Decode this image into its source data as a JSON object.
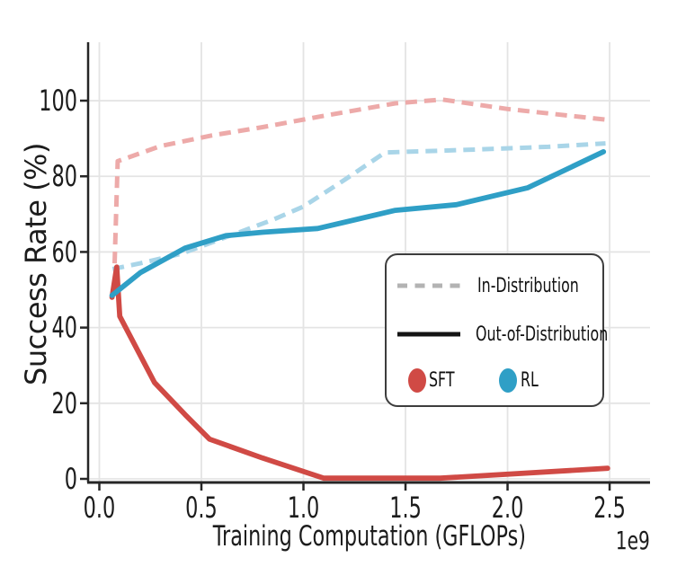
{
  "chart_data": {
    "type": "line",
    "xlabel": "Training Computation (GFLOPs)",
    "ylabel": "Success Rate (%)",
    "x_offset_label": "1e9",
    "xlim": [
      -0.055,
      2.698
    ],
    "ylim": [
      -0.95,
      115.45
    ],
    "grid": true,
    "x_ticks": [
      0.0,
      0.5,
      1.0,
      1.5,
      2.0,
      2.5
    ],
    "x_tick_labels": [
      "0.0",
      "0.5",
      "1.0",
      "1.5",
      "2.0",
      "2.5"
    ],
    "y_ticks": [
      0,
      20,
      40,
      60,
      80,
      100
    ],
    "y_tick_labels": [
      "0",
      "20",
      "40",
      "60",
      "80",
      "100"
    ],
    "colors": {
      "grid": "#e4e4e4",
      "spine": "#262626",
      "tick_text": "#1c1c1c"
    },
    "series": [
      {
        "id": "sft-in-distribution",
        "name": "SFT In-Distribution",
        "model": "SFT",
        "distribution": "In-Distribution",
        "style": "dashed",
        "color": "#edaaa9",
        "points": [
          [
            0.075,
            57
          ],
          [
            0.09,
            84
          ],
          [
            0.3,
            88
          ],
          [
            0.55,
            90.8
          ],
          [
            0.8,
            93
          ],
          [
            1.1,
            96
          ],
          [
            1.45,
            99.3
          ],
          [
            1.68,
            100.3
          ],
          [
            2.0,
            97.8
          ],
          [
            2.48,
            95
          ]
        ]
      },
      {
        "id": "rl-in-distribution",
        "name": "RL In-Distribution",
        "model": "RL",
        "distribution": "In-Distribution",
        "style": "dashed",
        "color": "#a9d5e8",
        "points": [
          [
            0.065,
            55.5
          ],
          [
            0.2,
            57
          ],
          [
            0.4,
            59.5
          ],
          [
            0.55,
            62.5
          ],
          [
            0.7,
            65.5
          ],
          [
            0.85,
            68.5
          ],
          [
            1.0,
            72
          ],
          [
            1.2,
            79
          ],
          [
            1.4,
            86.3
          ],
          [
            1.8,
            87
          ],
          [
            2.2,
            87.8
          ],
          [
            2.48,
            88.7
          ]
        ]
      },
      {
        "id": "sft-out-of-distribution",
        "name": "SFT Out-of-Distribution",
        "model": "SFT",
        "distribution": "Out-of-Distribution",
        "style": "solid",
        "color": "#d04a45",
        "points": [
          [
            0.062,
            48
          ],
          [
            0.085,
            56
          ],
          [
            0.1,
            43
          ],
          [
            0.27,
            25.5
          ],
          [
            0.42,
            17
          ],
          [
            0.54,
            10.5
          ],
          [
            0.8,
            5.5
          ],
          [
            1.1,
            0.2
          ],
          [
            1.67,
            0.2
          ],
          [
            2.49,
            2.8
          ]
        ]
      },
      {
        "id": "rl-out-of-distribution",
        "name": "RL Out-of-Distribution",
        "model": "RL",
        "distribution": "Out-of-Distribution",
        "style": "solid",
        "color": "#2f9fc6",
        "points": [
          [
            0.062,
            48.5
          ],
          [
            0.2,
            54.5
          ],
          [
            0.42,
            61
          ],
          [
            0.62,
            64.3
          ],
          [
            0.8,
            65.2
          ],
          [
            1.07,
            66.2
          ],
          [
            1.45,
            71
          ],
          [
            1.75,
            72.5
          ],
          [
            2.1,
            77
          ],
          [
            2.47,
            86.5
          ]
        ]
      }
    ],
    "legend": {
      "position": "lower right",
      "items": [
        {
          "label": "In-Distribution",
          "swatch": "dashed-line",
          "color": "#b3b3b3"
        },
        {
          "label": "Out-of-Distribution",
          "swatch": "solid-line",
          "color": "#141414"
        },
        {
          "label": "SFT",
          "swatch": "ellipse",
          "color": "#d04a45"
        },
        {
          "label": "RL",
          "swatch": "ellipse",
          "color": "#2f9fc6"
        }
      ]
    }
  }
}
